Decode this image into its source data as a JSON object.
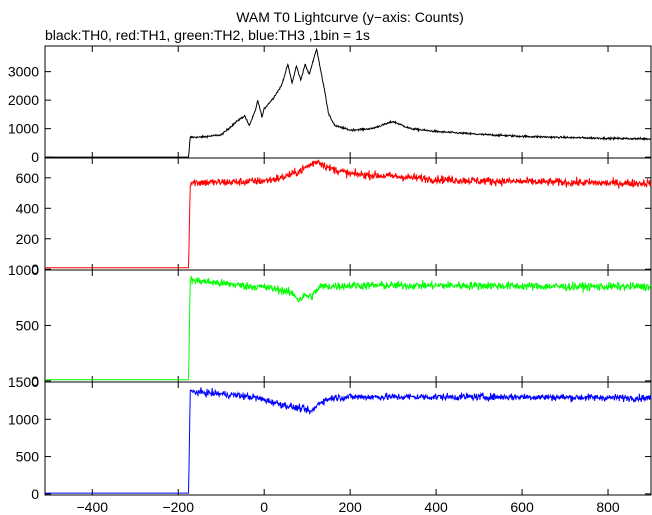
{
  "chart_data": {
    "type": "line",
    "title": "WAM T0 Lightcurve (y−axis: Counts)",
    "subtitle": "black:TH0, red:TH1, green:TH2, blue:TH3 ,1bin = 1s",
    "xlabel": "",
    "ylabel": "",
    "xlim": [
      -510,
      900
    ],
    "x_ticks": [
      -400,
      -200,
      0,
      200,
      400,
      600,
      800
    ],
    "x_tick_labels": [
      "−400",
      "−200",
      "0",
      "200",
      "400",
      "600",
      "800"
    ],
    "grid": false,
    "panels": [
      {
        "name": "TH0",
        "color": "#000000",
        "ylim": [
          -30,
          3900
        ],
        "y_ticks": [
          0,
          1000,
          2000,
          3000
        ],
        "x": [
          -510,
          -176,
          -172,
          -150,
          -100,
          -60,
          -45,
          -35,
          -20,
          -15,
          -5,
          0,
          20,
          40,
          55,
          65,
          75,
          85,
          95,
          105,
          115,
          122,
          130,
          140,
          150,
          165,
          200,
          250,
          300,
          340,
          400,
          500,
          600,
          700,
          800,
          900
        ],
        "values": [
          0,
          0,
          700,
          700,
          780,
          1300,
          1450,
          1100,
          1650,
          2000,
          1400,
          1700,
          2050,
          2500,
          3250,
          2600,
          3200,
          2700,
          3250,
          2900,
          3450,
          3800,
          3150,
          2400,
          1500,
          1100,
          950,
          1000,
          1250,
          1000,
          900,
          800,
          730,
          690,
          660,
          640
        ]
      },
      {
        "name": "TH1",
        "color": "#ff0000",
        "ylim": [
          -5,
          730
        ],
        "y_ticks": [
          0,
          200,
          400,
          600
        ],
        "y_tick_labels": [
          "0",
          "200",
          "400",
          "600"
        ],
        "x": [
          -510,
          -176,
          -172,
          -100,
          -40,
          0,
          40,
          80,
          110,
          125,
          150,
          200,
          300,
          400,
          500,
          600,
          700,
          800,
          900
        ],
        "values": [
          10,
          10,
          570,
          570,
          575,
          580,
          600,
          640,
          690,
          710,
          665,
          625,
          610,
          590,
          580,
          575,
          570,
          565,
          565
        ]
      },
      {
        "name": "TH2",
        "color": "#00ff00",
        "ylim": [
          -10,
          1000
        ],
        "y_ticks": [
          0,
          500,
          1000
        ],
        "y_tick_labels": [
          "0",
          "500",
          "1000"
        ],
        "x": [
          -510,
          -176,
          -172,
          -100,
          -40,
          0,
          40,
          70,
          80,
          95,
          110,
          130,
          200,
          300,
          400,
          500,
          600,
          700,
          800,
          900
        ],
        "values": [
          10,
          10,
          910,
          880,
          855,
          845,
          820,
          780,
          730,
          770,
          760,
          850,
          860,
          860,
          860,
          860,
          855,
          850,
          850,
          850
        ]
      },
      {
        "name": "TH3",
        "color": "#0000ff",
        "ylim": [
          -15,
          1500
        ],
        "y_ticks": [
          0,
          500,
          1000,
          1500
        ],
        "y_tick_labels": [
          "0",
          "500",
          "1000",
          "1500"
        ],
        "x": [
          -510,
          -176,
          -172,
          -100,
          -60,
          -20,
          0,
          40,
          70,
          90,
          110,
          130,
          160,
          200,
          300,
          400,
          500,
          600,
          700,
          800,
          900
        ],
        "values": [
          10,
          10,
          1370,
          1340,
          1320,
          1290,
          1260,
          1200,
          1160,
          1140,
          1100,
          1230,
          1290,
          1300,
          1300,
          1300,
          1300,
          1300,
          1295,
          1290,
          1285
        ]
      }
    ]
  }
}
